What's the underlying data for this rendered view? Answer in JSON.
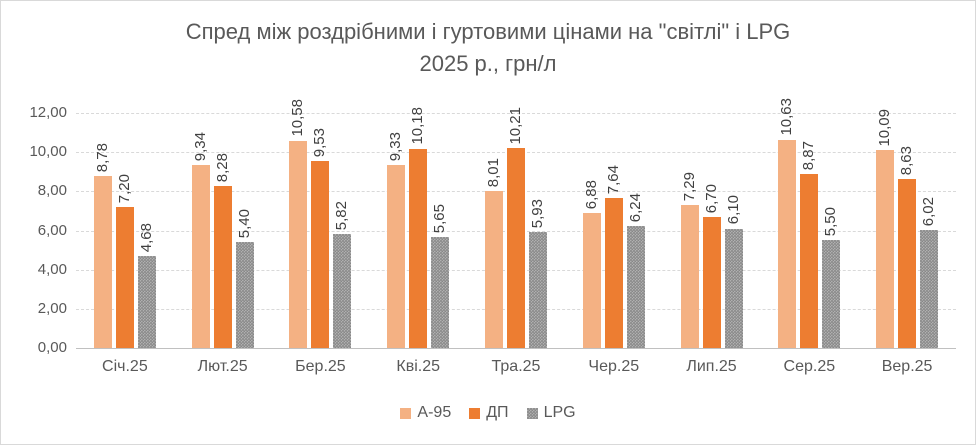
{
  "chart_data": {
    "type": "bar",
    "title": "Спред між роздрібними і гуртовими цінами на \"світлі\" і LPG",
    "subtitle": "2025 р., грн/л",
    "categories": [
      "Січ.25",
      "Лют.25",
      "Бер.25",
      "Кві.25",
      "Тра.25",
      "Чер.25",
      "Лип.25",
      "Сер.25",
      "Вер.25"
    ],
    "series": [
      {
        "name": "A-95",
        "color": "#F4B183",
        "pattern": false,
        "values": [
          8.78,
          9.34,
          10.58,
          9.33,
          8.01,
          6.88,
          7.29,
          10.63,
          10.09
        ]
      },
      {
        "name": "ДП",
        "color": "#ED7D31",
        "pattern": false,
        "values": [
          7.2,
          8.28,
          9.53,
          10.18,
          10.21,
          7.64,
          6.7,
          8.87,
          8.63
        ]
      },
      {
        "name": "LPG",
        "color": "#A6A6A6",
        "pattern": true,
        "values": [
          4.68,
          5.4,
          5.82,
          5.65,
          5.93,
          6.24,
          6.1,
          5.5,
          6.02
        ]
      }
    ],
    "ylim": [
      0,
      12
    ],
    "y_tick_step": 2,
    "y_tick_labels": [
      "0,00",
      "2,00",
      "4,00",
      "6,00",
      "8,00",
      "10,00",
      "12,00"
    ],
    "decimal_separator": ",",
    "grid": true,
    "data_labels_rotated": true,
    "legend_position": "bottom",
    "colors": {
      "title_text": "#595959",
      "axis_text": "#595959",
      "data_label_text": "#404040",
      "gridline": "#D9D9D9",
      "axis_line": "#C0C0C0",
      "frame_border": "#D9D9D9",
      "background": "#FFFFFF"
    }
  }
}
